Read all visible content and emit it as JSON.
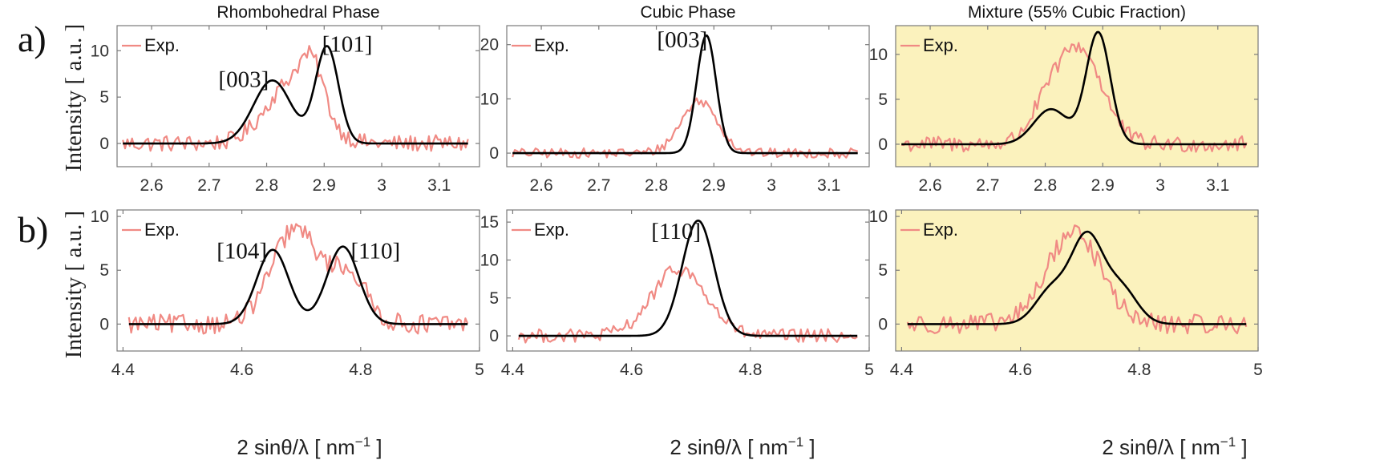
{
  "colors": {
    "experiment": "#f08a84",
    "fit": "#000000",
    "mixture_background": "#fbf2bd",
    "axis": "#7a7a7a"
  },
  "labels": {
    "row_a": "a)",
    "row_b": "b)",
    "ylabel": "Intensity [ a.u. ]",
    "xlabel": "2 sinθ/λ [ nm⁻¹ ]",
    "xlabel_main": "2 sinθ/λ [ nm",
    "xlabel_sup": "−1",
    "xlabel_end": " ]"
  },
  "chart_data": [
    {
      "id": "a1",
      "type": "line",
      "title": "Rhombohedral Phase",
      "xlim": [
        2.54,
        3.17
      ],
      "ylim": [
        -2.5,
        12.7
      ],
      "xticks": [
        2.6,
        2.7,
        2.8,
        2.9,
        3,
        3.1
      ],
      "xtick_labels": [
        "2.6",
        "2.7",
        "2.8",
        "2.9",
        "3",
        "3.1"
      ],
      "yticks": [
        0,
        5,
        10
      ],
      "ytick_labels": [
        "0",
        "5",
        "10"
      ],
      "legend": "Exp.",
      "x_range": [
        2.55,
        3.15
      ],
      "noise": 0.9,
      "peaks": [
        {
          "center": 2.81,
          "height": 6.8,
          "width": 0.033
        },
        {
          "center": 2.905,
          "height": 10.4,
          "width": 0.02
        }
      ],
      "exp_peaks": [
        {
          "center": 2.845,
          "height": 6.6,
          "width": 0.045
        },
        {
          "center": 2.88,
          "height": 4.5,
          "width": 0.02
        }
      ],
      "annotations": [
        {
          "text": "[003]",
          "x": 2.76,
          "y": 6.1
        },
        {
          "text": "[101]",
          "x": 2.94,
          "y": 9.9
        }
      ]
    },
    {
      "id": "a2",
      "type": "line",
      "title": "Cubic Phase",
      "xlim": [
        2.54,
        3.17
      ],
      "ylim": [
        -2.5,
        23.5
      ],
      "xticks": [
        2.6,
        2.7,
        2.8,
        2.9,
        3,
        3.1
      ],
      "xtick_labels": [
        "2.6",
        "2.7",
        "2.8",
        "2.9",
        "3",
        "3.1"
      ],
      "yticks": [
        0,
        10,
        20
      ],
      "ytick_labels": [
        "0",
        "10",
        "20"
      ],
      "legend": "Exp.",
      "x_range": [
        2.55,
        3.15
      ],
      "noise": 0.9,
      "peaks": [
        {
          "center": 2.887,
          "height": 21.7,
          "width": 0.017
        }
      ],
      "exp_peaks": [
        {
          "center": 2.875,
          "height": 9.6,
          "width": 0.032
        }
      ],
      "annotations": [
        {
          "text": "[003]",
          "x": 2.845,
          "y": 19.5
        }
      ]
    },
    {
      "id": "a3",
      "type": "line",
      "title": "Mixture (55% Cubic Fraction)",
      "xlim": [
        2.54,
        3.17
      ],
      "ylim": [
        -2.5,
        13.2
      ],
      "xticks": [
        2.6,
        2.7,
        2.8,
        2.9,
        3,
        3.1
      ],
      "xtick_labels": [
        "2.6",
        "2.7",
        "2.8",
        "2.9",
        "3",
        "3.1"
      ],
      "yticks": [
        0,
        5,
        10
      ],
      "ytick_labels": [
        "0",
        "5",
        "10"
      ],
      "legend": "Exp.",
      "x_range": [
        2.55,
        3.15
      ],
      "noise": 0.9,
      "peaks": [
        {
          "center": 2.81,
          "height": 3.9,
          "width": 0.03
        },
        {
          "center": 2.892,
          "height": 12.4,
          "width": 0.021
        }
      ],
      "exp_peaks": [
        {
          "center": 2.86,
          "height": 10.5,
          "width": 0.04
        },
        {
          "center": 2.8,
          "height": 2.8,
          "width": 0.03
        }
      ],
      "annotations": []
    },
    {
      "id": "b1",
      "type": "line",
      "title": "",
      "xlim": [
        4.39,
        5.0
      ],
      "ylim": [
        -2.5,
        10.6
      ],
      "xticks": [
        4.4,
        4.6,
        4.8,
        5
      ],
      "xtick_labels": [
        "4.4",
        "4.6",
        "4.8",
        "5"
      ],
      "yticks": [
        0,
        5,
        10
      ],
      "ytick_labels": [
        "0",
        "5",
        "10"
      ],
      "legend": "Exp.",
      "x_range": [
        4.41,
        4.98
      ],
      "noise": 0.9,
      "peaks": [
        {
          "center": 4.652,
          "height": 6.9,
          "width": 0.027
        },
        {
          "center": 4.77,
          "height": 7.2,
          "width": 0.027
        }
      ],
      "exp_peaks": [
        {
          "center": 4.69,
          "height": 8.8,
          "width": 0.04
        },
        {
          "center": 4.78,
          "height": 4.5,
          "width": 0.03
        }
      ],
      "annotations": [
        {
          "text": "[104]",
          "x": 4.6,
          "y": 6.1
        },
        {
          "text": "[110]",
          "x": 4.825,
          "y": 6.1
        }
      ]
    },
    {
      "id": "b2",
      "type": "line",
      "title": "",
      "xlim": [
        4.39,
        5.0
      ],
      "ylim": [
        -2.0,
        16.6
      ],
      "xticks": [
        4.4,
        4.6,
        4.8,
        5
      ],
      "xtick_labels": [
        "4.4",
        "4.6",
        "4.8",
        "5"
      ],
      "yticks": [
        0,
        5,
        10,
        15
      ],
      "ytick_labels": [
        "0",
        "5",
        "10",
        "15"
      ],
      "legend": "Exp.",
      "x_range": [
        4.41,
        4.98
      ],
      "noise": 0.9,
      "peaks": [
        {
          "center": 4.712,
          "height": 15.2,
          "width": 0.027
        }
      ],
      "exp_peaks": [
        {
          "center": 4.68,
          "height": 8.8,
          "width": 0.045
        }
      ],
      "annotations": [
        {
          "text": "[110]",
          "x": 4.675,
          "y": 12.8
        }
      ]
    },
    {
      "id": "b3",
      "type": "line",
      "title": "",
      "xlim": [
        4.39,
        5.0
      ],
      "ylim": [
        -2.5,
        10.6
      ],
      "xticks": [
        4.4,
        4.6,
        4.8,
        5
      ],
      "xtick_labels": [
        "4.4",
        "4.6",
        "4.8",
        "5"
      ],
      "yticks": [
        0,
        5,
        10
      ],
      "ytick_labels": [
        "0",
        "5",
        "10"
      ],
      "legend": "Exp.",
      "x_range": [
        4.41,
        4.98
      ],
      "noise": 0.9,
      "peaks": [
        {
          "center": 4.652,
          "height": 3.1,
          "width": 0.027
        },
        {
          "center": 4.712,
          "height": 8.0,
          "width": 0.027
        },
        {
          "center": 4.77,
          "height": 3.2,
          "width": 0.027
        }
      ],
      "exp_peaks": [
        {
          "center": 4.69,
          "height": 8.6,
          "width": 0.045
        }
      ],
      "annotations": []
    }
  ]
}
